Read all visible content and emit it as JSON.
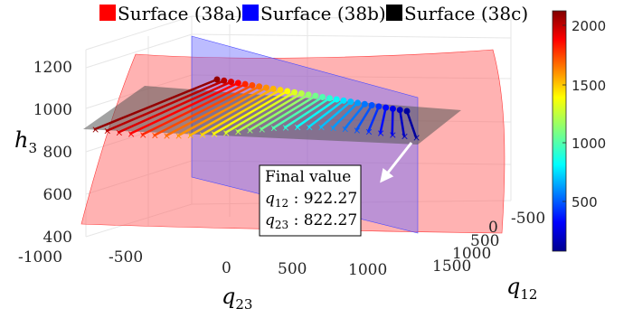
{
  "chart_data": {
    "type": "surface3d",
    "legend": {
      "entries": [
        {
          "label": "Surface (38a)",
          "color": "#ff0000"
        },
        {
          "label": "Surface (38b)",
          "color": "#0000ff"
        },
        {
          "label": "Surface (38c)",
          "color": "#000000"
        }
      ]
    },
    "axes": {
      "z": {
        "label": "h",
        "sub": "3",
        "ticks": [
          "400",
          "600",
          "800",
          "1000",
          "1200"
        ]
      },
      "x": {
        "label": "q",
        "sub": "23",
        "ticks": [
          "-1000",
          "-500",
          "0",
          "500",
          "1000"
        ]
      },
      "y": {
        "label": "q",
        "sub": "12",
        "ticks": [
          "-500",
          "0",
          "500",
          "1000",
          "1500"
        ]
      }
    },
    "colorbar": {
      "ticks": [
        "2000",
        "1500",
        "1000",
        "500"
      ],
      "colormap": "jet"
    },
    "annotation": {
      "title": "Final value",
      "lines": [
        {
          "var": "q",
          "sub": "12",
          "value": " : 922.27"
        },
        {
          "var": "q",
          "sub": "23",
          "value": " : 822.27"
        }
      ]
    },
    "colors": {
      "surface_a": "#ff0000",
      "surface_b": "#0000ff",
      "surface_c": "#000000"
    }
  }
}
